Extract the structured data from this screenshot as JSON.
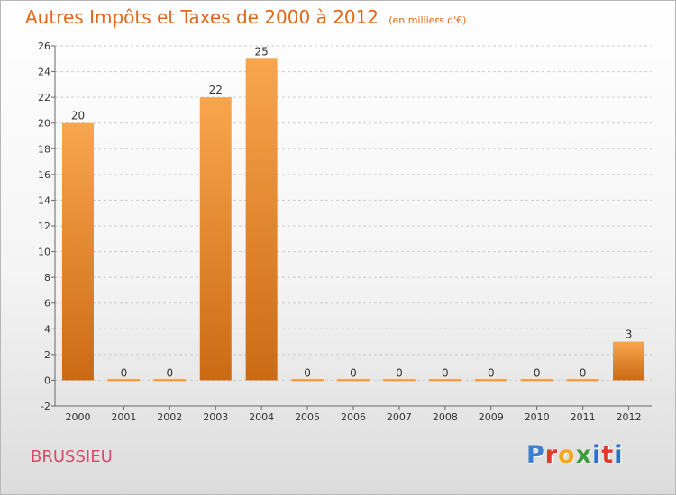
{
  "header": {
    "title": "Autres Impôts et Taxes de 2000 à 2012",
    "subtitle": "(en milliers d'€)"
  },
  "footer": {
    "place": "BRUSSIEU",
    "logo_letters": [
      "P",
      "r",
      "o",
      "x",
      "i",
      "t",
      "i"
    ],
    "logo_colors": [
      "#3a7fd0",
      "#e23a2a",
      "#f5a623",
      "#3a9d3a",
      "#2a6fc9",
      "#e23a2a",
      "#2a6fc9"
    ]
  },
  "colors": {
    "bar_top": "#f8a64e",
    "bar_bottom": "#cc6a14",
    "axis": "#666666",
    "grid": "#cccccc"
  },
  "chart_data": {
    "type": "bar",
    "categories": [
      "2000",
      "2001",
      "2002",
      "2003",
      "2004",
      "2005",
      "2006",
      "2007",
      "2008",
      "2009",
      "2010",
      "2011",
      "2012"
    ],
    "values": [
      20,
      0,
      0,
      22,
      25,
      0,
      0,
      0,
      0,
      0,
      0,
      0,
      3
    ],
    "ylim": [
      -2,
      26
    ],
    "yticks": [
      -2,
      0,
      2,
      4,
      6,
      8,
      10,
      12,
      14,
      16,
      18,
      20,
      22,
      24,
      26
    ],
    "grid": "horizontal dashed",
    "data_labels": true
  }
}
